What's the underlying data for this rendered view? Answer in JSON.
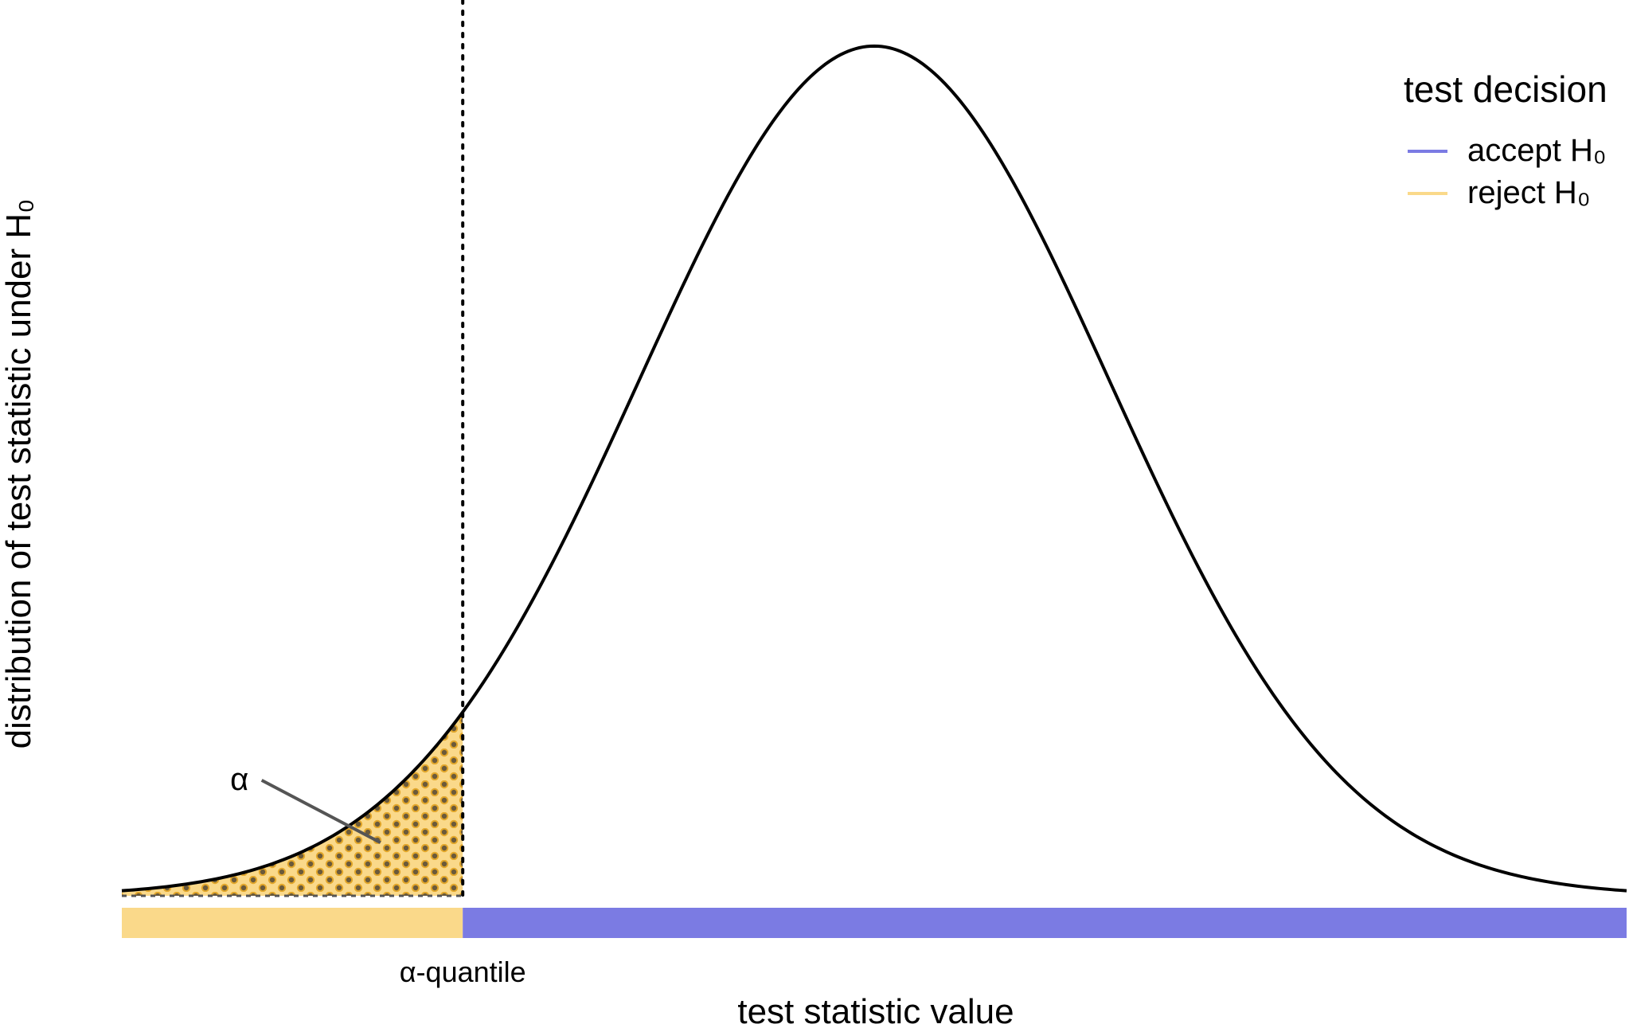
{
  "chart_data": {
    "type": "area",
    "title": "",
    "xlabel": "test statistic value",
    "ylabel": "distribution of test statistic under H₀",
    "xlim": [
      -3.2,
      3.2
    ],
    "ylim": [
      0,
      0.4
    ],
    "distribution": {
      "name": "normal",
      "mean": 0,
      "sd": 1
    },
    "series": [
      {
        "name": "distribution of test statistic under H₀",
        "type": "line",
        "color": "#000000"
      }
    ],
    "critical_value": {
      "x": -1.75,
      "label": "α-quantile",
      "line_style": "dotted"
    },
    "shaded_region": {
      "from": -3.2,
      "to": -1.75,
      "pattern": "circles",
      "fill": "#FAD98A",
      "dot_color": "#6B5A3A",
      "dot_ring": "#E3A72A"
    },
    "annotation": {
      "text": "α",
      "x": -2.7,
      "y": 0.055,
      "points_to": [
        -2.1,
        0.025
      ]
    },
    "decision_bar": [
      {
        "from": -3.2,
        "to": -1.75,
        "decision": "reject",
        "color": "#FAD98A"
      },
      {
        "from": -1.75,
        "to": 3.2,
        "decision": "accept",
        "color": "#7B7BE3"
      }
    ],
    "legend": {
      "title": "test decision",
      "position": "top-right",
      "entries": [
        {
          "label": "accept H₀",
          "color": "#7B7BE3"
        },
        {
          "label": "reject H₀",
          "color": "#FAD98A"
        }
      ]
    },
    "grid": false
  }
}
